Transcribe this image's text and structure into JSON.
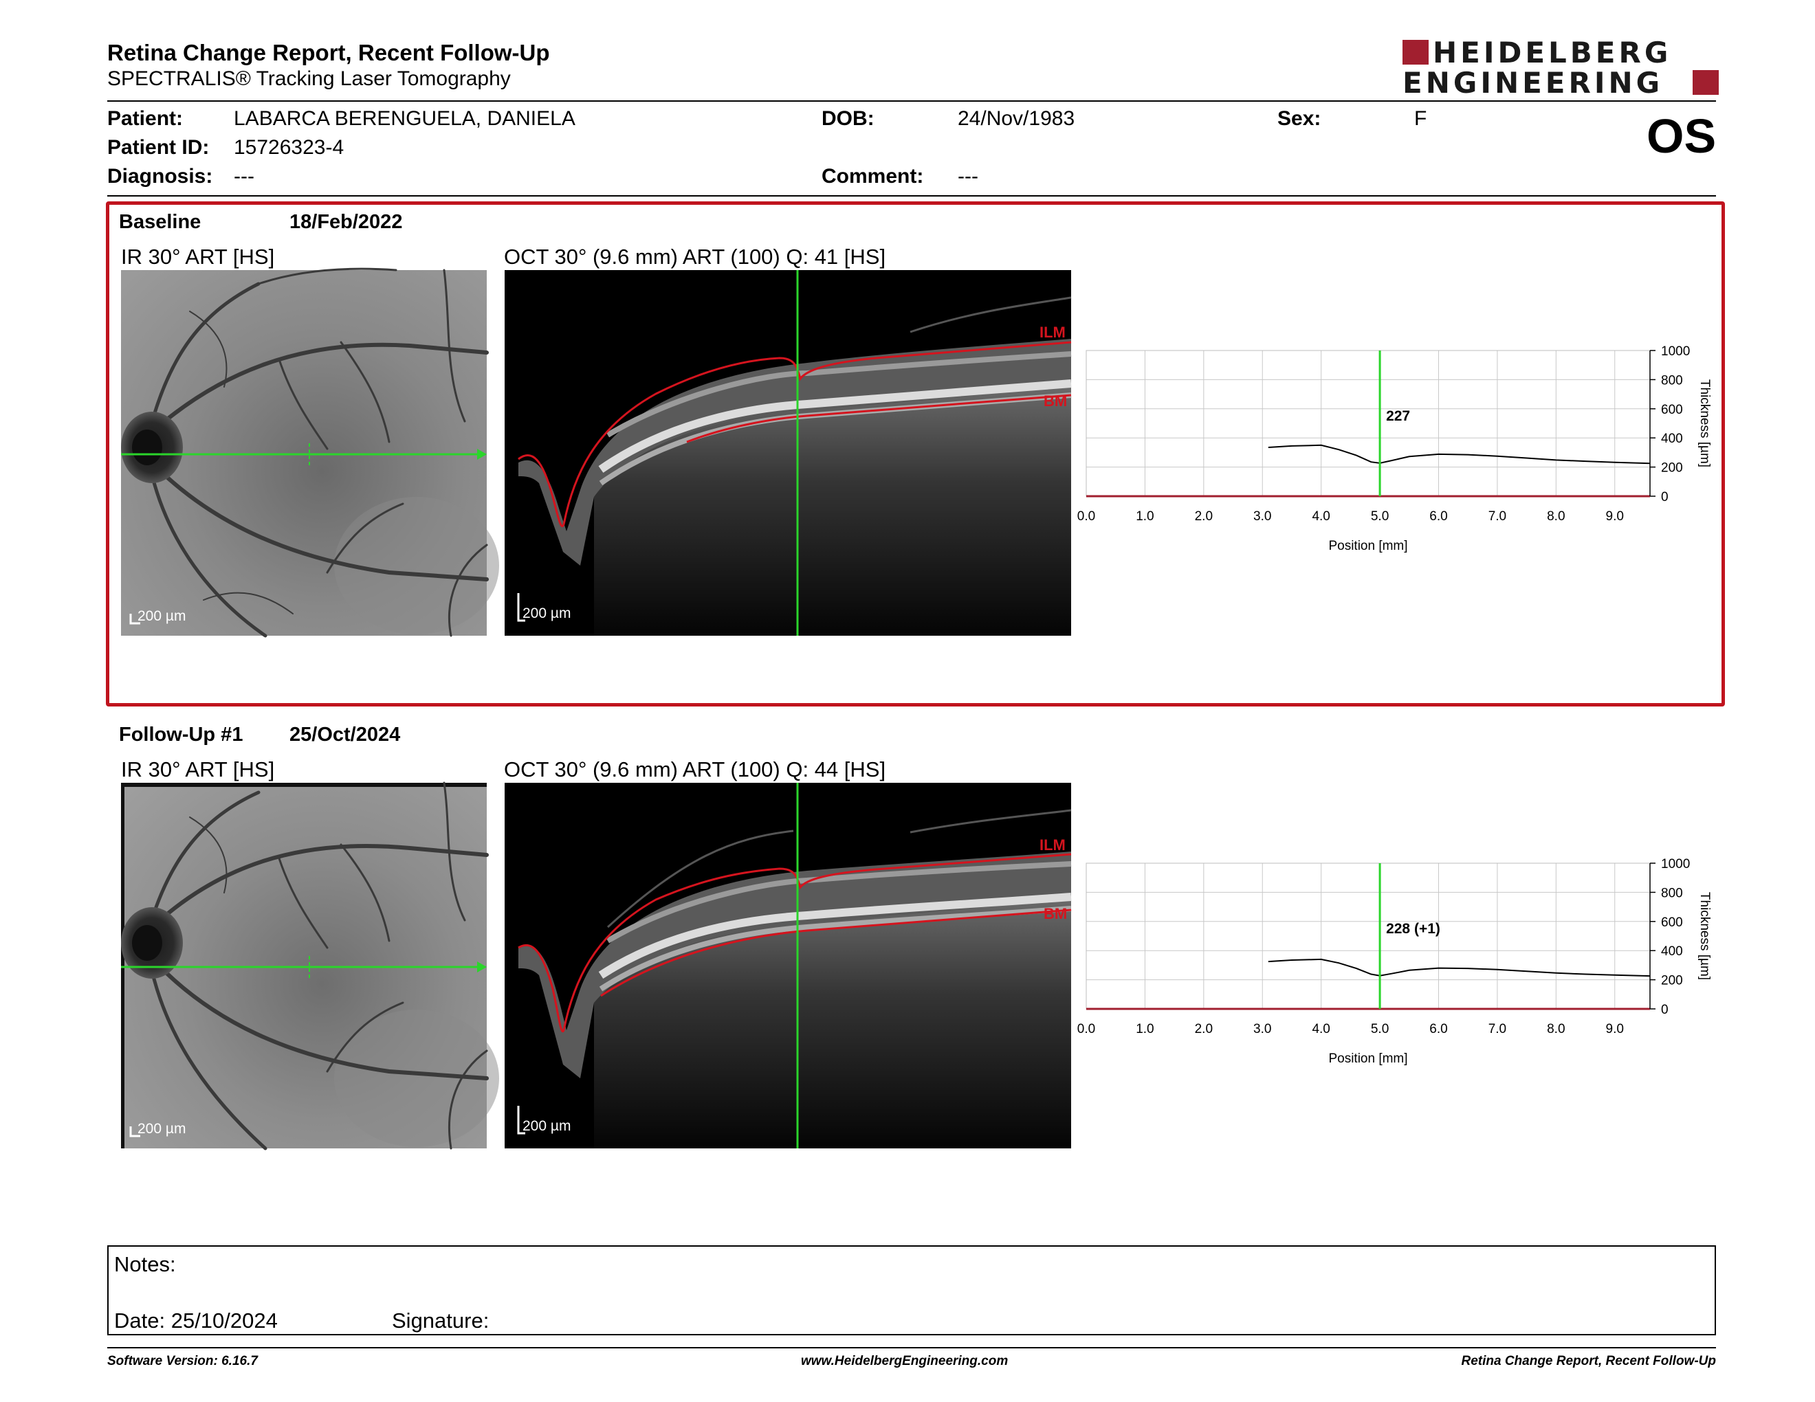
{
  "header": {
    "title": "Retina Change Report, Recent Follow-Up",
    "subtitle": "SPECTRALIS® Tracking Laser Tomography",
    "logo_line1": "HEIDELBERG",
    "logo_line2": "ENGINEERING",
    "eye": "OS"
  },
  "patient": {
    "name_label": "Patient:",
    "name": "LABARCA BERENGUELA, DANIELA",
    "id_label": "Patient ID:",
    "id": "15726323-4",
    "diagnosis_label": "Diagnosis:",
    "diagnosis": "---",
    "dob_label": "DOB:",
    "dob": "24/Nov/1983",
    "comment_label": "Comment:",
    "comment": "---",
    "sex_label": "Sex:",
    "sex": "F"
  },
  "sections": [
    {
      "label": "Baseline",
      "date": "18/Feb/2022",
      "ir_title": "IR 30° ART [HS]",
      "oct_title": "OCT 30° (9.6 mm) ART (100) Q: 41 [HS]",
      "ir_scale": "200 µm",
      "oct_scale": "200 µm",
      "seg_top": "ILM",
      "seg_bottom": "BM"
    },
    {
      "label": "Follow-Up #1",
      "date": "25/Oct/2024",
      "ir_title": "IR 30° ART [HS]",
      "oct_title": "OCT 30° (9.6 mm) ART (100) Q: 44 [HS]",
      "ir_scale": "200 µm",
      "oct_scale": "200 µm",
      "seg_top": "ILM",
      "seg_bottom": "BM"
    }
  ],
  "chart_data": [
    {
      "type": "line",
      "xlabel": "Position [mm]",
      "ylabel": "Thickness [µm]",
      "xlim": [
        0,
        9.6
      ],
      "ylim": [
        0,
        1000
      ],
      "x_ticks": [
        "0.0",
        "1.0",
        "2.0",
        "3.0",
        "4.0",
        "5.0",
        "6.0",
        "7.0",
        "8.0",
        "9.0"
      ],
      "y_ticks": [
        "0",
        "200",
        "400",
        "600",
        "800",
        "1000"
      ],
      "marker_x": 5.0,
      "annotation": "227",
      "series": [
        {
          "x": [
            3.1,
            3.5,
            4.0,
            4.3,
            4.6,
            4.85,
            5.0,
            5.2,
            5.5,
            6.0,
            6.5,
            7.0,
            7.5,
            8.0,
            8.5,
            9.0,
            9.6
          ],
          "values": [
            335,
            345,
            350,
            320,
            280,
            235,
            227,
            245,
            272,
            288,
            285,
            275,
            262,
            248,
            240,
            232,
            225
          ]
        }
      ]
    },
    {
      "type": "line",
      "xlabel": "Position [mm]",
      "ylabel": "Thickness [µm]",
      "xlim": [
        0,
        9.6
      ],
      "ylim": [
        0,
        1000
      ],
      "x_ticks": [
        "0.0",
        "1.0",
        "2.0",
        "3.0",
        "4.0",
        "5.0",
        "6.0",
        "7.0",
        "8.0",
        "9.0"
      ],
      "y_ticks": [
        "0",
        "200",
        "400",
        "600",
        "800",
        "1000"
      ],
      "marker_x": 5.0,
      "annotation": "228 (+1)",
      "series": [
        {
          "x": [
            3.1,
            3.5,
            4.0,
            4.3,
            4.6,
            4.85,
            5.0,
            5.2,
            5.5,
            6.0,
            6.5,
            7.0,
            7.5,
            8.0,
            8.5,
            9.0,
            9.6
          ],
          "values": [
            325,
            335,
            340,
            315,
            278,
            238,
            228,
            242,
            265,
            280,
            278,
            270,
            258,
            246,
            238,
            232,
            226
          ]
        }
      ]
    }
  ],
  "notes": {
    "notes_label": "Notes:",
    "date_label": "Date: 25/10/2024",
    "signature_label": "Signature:"
  },
  "footer": {
    "software": "Software Version: 6.16.7",
    "website": "www.HeidelbergEngineering.com",
    "report_name": "Retina Change Report, Recent Follow-Up"
  },
  "colors": {
    "brand_red": "#a11f2f",
    "frame_red": "#c0141e",
    "scan_green": "#2bd52b",
    "segmentation_red": "#d4141e"
  }
}
